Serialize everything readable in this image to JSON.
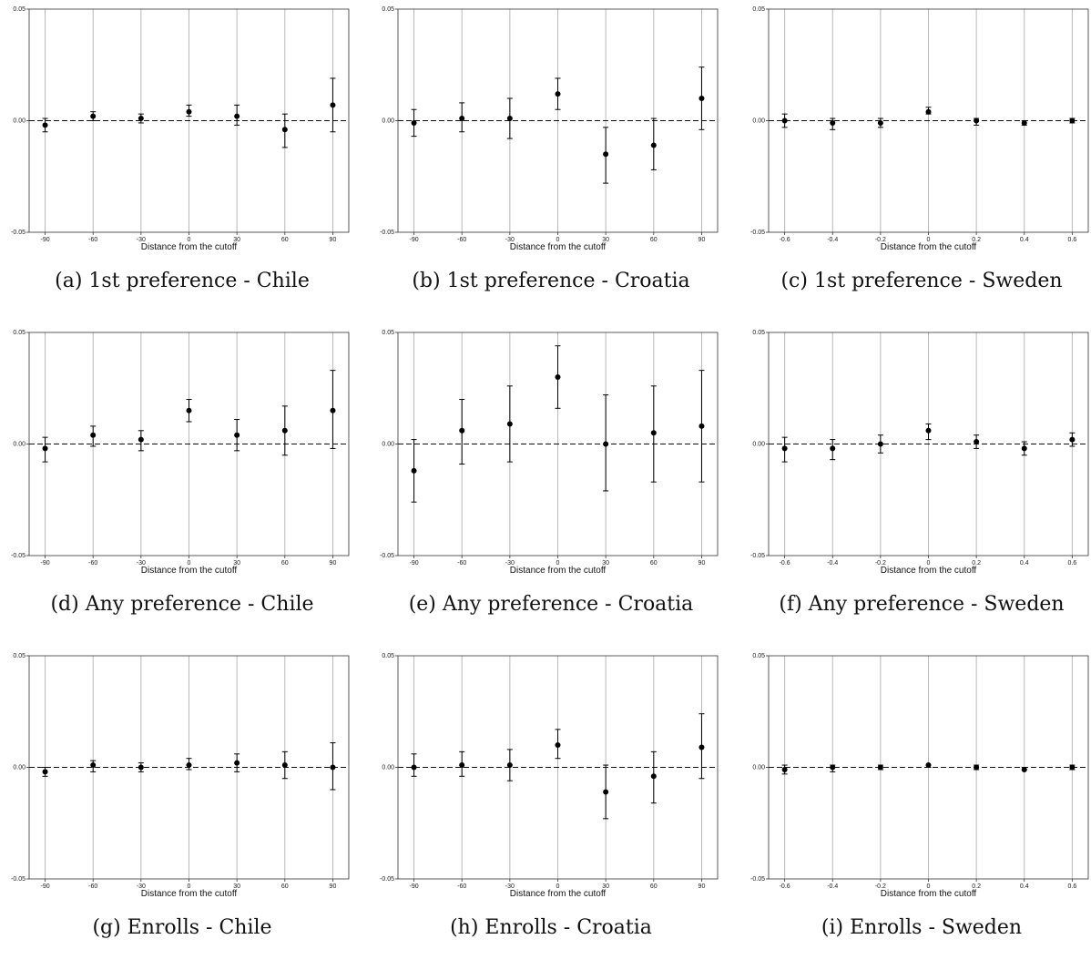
{
  "chart_data": [
    {
      "type": "scatter",
      "caption": "(a) 1st preference - Chile",
      "xlabel": "Distance from the cutoff",
      "ylabel": "",
      "ylim": [
        -0.05,
        0.05
      ],
      "yticks": [
        "-0.05",
        "0.00",
        "0.05"
      ],
      "x": [
        -90,
        -60,
        -30,
        0,
        30,
        60,
        90
      ],
      "xticklabels": [
        "-90",
        "-60",
        "-30",
        "0",
        "30",
        "60",
        "90"
      ],
      "xlim": [
        -100,
        100
      ],
      "y": [
        -0.002,
        0.002,
        0.001,
        0.004,
        0.002,
        -0.004,
        0.007
      ],
      "ci_low": [
        -0.005,
        0.0,
        -0.001,
        0.002,
        -0.002,
        -0.012,
        -0.005
      ],
      "ci_high": [
        0.001,
        0.004,
        0.003,
        0.007,
        0.007,
        0.003,
        0.019
      ],
      "baseline": 0,
      "grid": "vertical"
    },
    {
      "type": "scatter",
      "caption": "(b) 1st preference - Croatia",
      "xlabel": "Distance from the cutoff",
      "ylabel": "",
      "ylim": [
        -0.05,
        0.05
      ],
      "yticks": [
        "-0.05",
        "0.00",
        "0.05"
      ],
      "x": [
        -90,
        -60,
        -30,
        0,
        30,
        60,
        90
      ],
      "xticklabels": [
        "-90",
        "-60",
        "-30",
        "0",
        "30",
        "60",
        "90"
      ],
      "xlim": [
        -100,
        100
      ],
      "y": [
        -0.001,
        0.001,
        0.001,
        0.012,
        -0.015,
        -0.011,
        0.01
      ],
      "ci_low": [
        -0.007,
        -0.005,
        -0.008,
        0.005,
        -0.028,
        -0.022,
        -0.004
      ],
      "ci_high": [
        0.005,
        0.008,
        0.01,
        0.019,
        -0.003,
        0.001,
        0.024
      ],
      "baseline": 0,
      "grid": "vertical"
    },
    {
      "type": "scatter",
      "caption": "(c) 1st preference - Sweden",
      "xlabel": "Distance from the cutoff",
      "ylabel": "",
      "ylim": [
        -0.05,
        0.05
      ],
      "yticks": [
        "-0.05",
        "0.00",
        "0.05"
      ],
      "x": [
        -0.6,
        -0.4,
        -0.2,
        0,
        0.2,
        0.4,
        0.6
      ],
      "xticklabels": [
        "-0.6",
        "-0.4",
        "-0.2",
        "0",
        "0.2",
        "0.4",
        "0.6"
      ],
      "xlim": [
        -0.667,
        0.667
      ],
      "y": [
        0.0,
        -0.001,
        -0.001,
        0.004,
        0.0,
        -0.001,
        0.0
      ],
      "ci_low": [
        -0.003,
        -0.004,
        -0.003,
        0.003,
        -0.002,
        -0.002,
        -0.001
      ],
      "ci_high": [
        0.003,
        0.001,
        0.001,
        0.006,
        0.001,
        0.0,
        0.001
      ],
      "baseline": 0,
      "grid": "vertical"
    },
    {
      "type": "scatter",
      "caption": "(d) Any preference - Chile",
      "xlabel": "Distance from the cutoff",
      "ylabel": "",
      "ylim": [
        -0.05,
        0.05
      ],
      "yticks": [
        "-0.05",
        "0.00",
        "0.05"
      ],
      "x": [
        -90,
        -60,
        -30,
        0,
        30,
        60,
        90
      ],
      "xticklabels": [
        "-90",
        "-60",
        "-30",
        "0",
        "30",
        "60",
        "90"
      ],
      "xlim": [
        -100,
        100
      ],
      "y": [
        -0.002,
        0.004,
        0.002,
        0.015,
        0.004,
        0.006,
        0.015
      ],
      "ci_low": [
        -0.008,
        -0.001,
        -0.003,
        0.01,
        -0.003,
        -0.005,
        -0.002
      ],
      "ci_high": [
        0.003,
        0.008,
        0.006,
        0.02,
        0.011,
        0.017,
        0.033
      ],
      "baseline": 0,
      "grid": "vertical"
    },
    {
      "type": "scatter",
      "caption": "(e) Any preference - Croatia",
      "xlabel": "Distance from the cutoff",
      "ylabel": "",
      "ylim": [
        -0.05,
        0.05
      ],
      "yticks": [
        "-0.05",
        "0.00",
        "0.05"
      ],
      "x": [
        -90,
        -60,
        -30,
        0,
        30,
        60,
        90
      ],
      "xticklabels": [
        "-90",
        "-60",
        "-30",
        "0",
        "30",
        "60",
        "90"
      ],
      "xlim": [
        -100,
        100
      ],
      "y": [
        -0.012,
        0.006,
        0.009,
        0.03,
        0.0,
        0.005,
        0.008
      ],
      "ci_low": [
        -0.026,
        -0.009,
        -0.008,
        0.016,
        -0.021,
        -0.017,
        -0.017
      ],
      "ci_high": [
        0.002,
        0.02,
        0.026,
        0.044,
        0.022,
        0.026,
        0.033
      ],
      "baseline": 0,
      "grid": "vertical"
    },
    {
      "type": "scatter",
      "caption": "(f) Any preference - Sweden",
      "xlabel": "Distance from the cutoff",
      "ylabel": "",
      "ylim": [
        -0.05,
        0.05
      ],
      "yticks": [
        "-0.05",
        "0.00",
        "0.05"
      ],
      "x": [
        -0.6,
        -0.4,
        -0.2,
        0,
        0.2,
        0.4,
        0.6
      ],
      "xticklabels": [
        "-0.6",
        "-0.4",
        "-0.2",
        "0",
        "0.2",
        "0.4",
        "0.6"
      ],
      "xlim": [
        -0.667,
        0.667
      ],
      "y": [
        -0.002,
        -0.002,
        0.0,
        0.006,
        0.001,
        -0.002,
        0.002
      ],
      "ci_low": [
        -0.008,
        -0.007,
        -0.004,
        0.002,
        -0.002,
        -0.005,
        -0.001
      ],
      "ci_high": [
        0.003,
        0.002,
        0.004,
        0.009,
        0.004,
        0.001,
        0.005
      ],
      "baseline": 0,
      "grid": "vertical"
    },
    {
      "type": "scatter",
      "caption": "(g) Enrolls - Chile",
      "xlabel": "Distance from the cutoff",
      "ylabel": "",
      "ylim": [
        -0.05,
        0.05
      ],
      "yticks": [
        "-0.05",
        "0.00",
        "0.05"
      ],
      "x": [
        -90,
        -60,
        -30,
        0,
        30,
        60,
        90
      ],
      "xticklabels": [
        "-90",
        "-60",
        "-30",
        "0",
        "30",
        "60",
        "90"
      ],
      "xlim": [
        -100,
        100
      ],
      "y": [
        -0.002,
        0.001,
        0.0,
        0.001,
        0.002,
        0.001,
        0.0
      ],
      "ci_low": [
        -0.004,
        -0.002,
        -0.002,
        -0.001,
        -0.002,
        -0.005,
        -0.01
      ],
      "ci_high": [
        0.0,
        0.003,
        0.002,
        0.004,
        0.006,
        0.007,
        0.011
      ],
      "baseline": 0,
      "grid": "vertical"
    },
    {
      "type": "scatter",
      "caption": "(h) Enrolls - Croatia",
      "xlabel": "Distance from the cutoff",
      "ylabel": "",
      "ylim": [
        -0.05,
        0.05
      ],
      "yticks": [
        "-0.05",
        "0.00",
        "0.05"
      ],
      "x": [
        -90,
        -60,
        -30,
        0,
        30,
        60,
        90
      ],
      "xticklabels": [
        "-90",
        "-60",
        "-30",
        "0",
        "30",
        "60",
        "90"
      ],
      "xlim": [
        -100,
        100
      ],
      "y": [
        0.0,
        0.001,
        0.001,
        0.01,
        -0.011,
        -0.004,
        0.009
      ],
      "ci_low": [
        -0.004,
        -0.004,
        -0.006,
        0.004,
        -0.023,
        -0.016,
        -0.005
      ],
      "ci_high": [
        0.006,
        0.007,
        0.008,
        0.017,
        0.001,
        0.007,
        0.024
      ],
      "baseline": 0,
      "grid": "vertical"
    },
    {
      "type": "scatter",
      "caption": "(i) Enrolls - Sweden",
      "xlabel": "Distance from the cutoff",
      "ylabel": "",
      "ylim": [
        -0.05,
        0.05
      ],
      "yticks": [
        "-0.05",
        "0.00",
        "0.05"
      ],
      "x": [
        -0.6,
        -0.4,
        -0.2,
        0,
        0.2,
        0.4,
        0.6
      ],
      "xticklabels": [
        "-0.6",
        "-0.4",
        "-0.2",
        "0",
        "0.2",
        "0.4",
        "0.6"
      ],
      "xlim": [
        -0.667,
        0.667
      ],
      "y": [
        -0.001,
        0.0,
        0.0,
        0.001,
        0.0,
        -0.001,
        0.0
      ],
      "ci_low": [
        -0.003,
        -0.002,
        -0.001,
        0.0,
        -0.001,
        -0.001,
        -0.001
      ],
      "ci_high": [
        0.001,
        0.001,
        0.001,
        0.001,
        0.001,
        0.0,
        0.001
      ],
      "baseline": 0,
      "grid": "vertical"
    }
  ]
}
